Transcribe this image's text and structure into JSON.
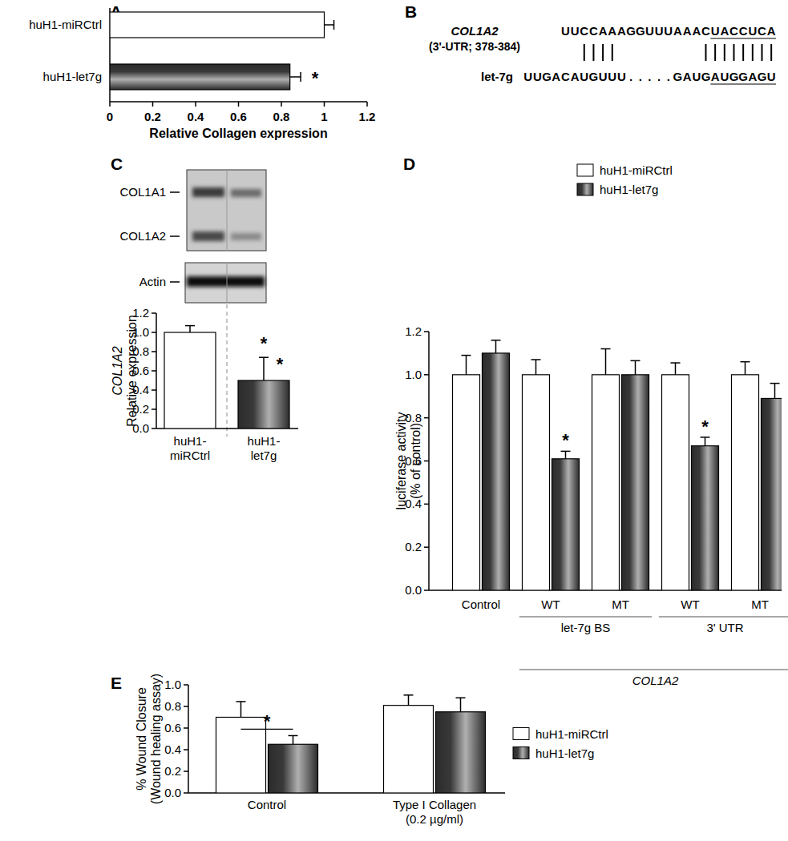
{
  "panel_labels": [
    "A",
    "B",
    "C",
    "D",
    "E"
  ],
  "sequence_diagram": {
    "target_label": "COL1A2",
    "target_detail": "(3'-UTR; 378-384)",
    "target_sequence": "UUCCAAAGGUUUAAACUACCUCA",
    "mirna_label": "let-7g",
    "mirna_sequence": "UUGACAUGUUU.....GAUGAUGGAGU"
  },
  "blot": {
    "labels": [
      "COL1A1",
      "COL1A2",
      "Actin"
    ]
  },
  "chart_data": [
    {
      "type": "bar",
      "orientation": "horizontal",
      "categories": [
        "huH1-miRCtrl",
        "huH1-let7g"
      ],
      "values": [
        1.0,
        0.84
      ],
      "errors": [
        0.045,
        0.05
      ],
      "significance": [
        null,
        "*"
      ],
      "colors": [
        "#ffffff",
        "#2b2b2b"
      ],
      "xlabel": "Relative  Collagen expression",
      "xlim": [
        0,
        1.2
      ],
      "xticks": [
        0,
        0.2,
        0.4,
        0.6,
        0.8,
        1,
        1.2
      ]
    },
    {
      "type": "bar",
      "categories": [
        "huH1-\nmiRCtrl",
        "huH1-\nlet7g"
      ],
      "values": [
        1.0,
        0.5
      ],
      "errors": [
        0.07,
        0.24
      ],
      "significance": [
        null,
        "*"
      ],
      "colors": [
        "#ffffff",
        "#2b2b2b"
      ],
      "ylabel": "COL1A2\nRelative expression",
      "ylim": [
        0,
        1.2
      ],
      "yticks": [
        {
          "value": 0,
          "label": "0.0"
        },
        0.2,
        0.4,
        0.6,
        0.8,
        {
          "value": 1,
          "label": "1.0"
        },
        1.2
      ]
    },
    {
      "type": "bar",
      "categories": [
        "Control",
        "WT",
        "MT",
        "WT",
        "MT"
      ],
      "groups": [
        {
          "label": "let-7g BS",
          "first": 1,
          "last": 2
        },
        {
          "label": "3' UTR",
          "first": 3,
          "last": 4
        },
        {
          "label": "COL1A2",
          "first": 1,
          "last": 4
        }
      ],
      "series": [
        {
          "name": "huH1-miRCtrl",
          "color": "#ffffff",
          "values": [
            1.0,
            1.0,
            1.0,
            1.0,
            1.0
          ],
          "errors": [
            0.09,
            0.07,
            0.12,
            0.055,
            0.06
          ]
        },
        {
          "name": "huH1-let7g",
          "color": "#2b2b2b",
          "values": [
            1.1,
            0.61,
            1.0,
            0.67,
            0.89
          ],
          "errors": [
            0.06,
            0.035,
            0.065,
            0.04,
            0.07
          ],
          "significance": [
            null,
            "*",
            null,
            "*",
            null
          ]
        }
      ],
      "ylabel": "luciferase activity\n(% of control)",
      "legend": "upper right",
      "ylim": [
        0,
        1.2
      ],
      "yticks": [
        {
          "value": 0,
          "label": "0.0"
        },
        0.2,
        0.4,
        0.6,
        0.8,
        {
          "value": 1,
          "label": "1.0"
        },
        1.2
      ]
    },
    {
      "type": "bar",
      "categories": [
        "Control",
        "Type I Collagen\n(0.2 µg/ml)"
      ],
      "series": [
        {
          "name": "huH1-miRCtrl",
          "color": "#ffffff",
          "values": [
            0.7,
            0.81
          ],
          "errors": [
            0.145,
            0.095
          ]
        },
        {
          "name": "huH1-let7g",
          "color": "#2b2b2b",
          "values": [
            0.45,
            0.75
          ],
          "errors": [
            0.08,
            0.13
          ]
        }
      ],
      "significance": [
        "*",
        null
      ],
      "ylabel": "% Wound Closure\n(Wound healing assay)",
      "legend": "right",
      "ylim": [
        0,
        1.0
      ],
      "yticks": [
        {
          "value": 0,
          "label": "0.0"
        },
        0.2,
        0.4,
        0.6,
        0.8,
        {
          "value": 1,
          "label": "1.0"
        }
      ]
    }
  ]
}
